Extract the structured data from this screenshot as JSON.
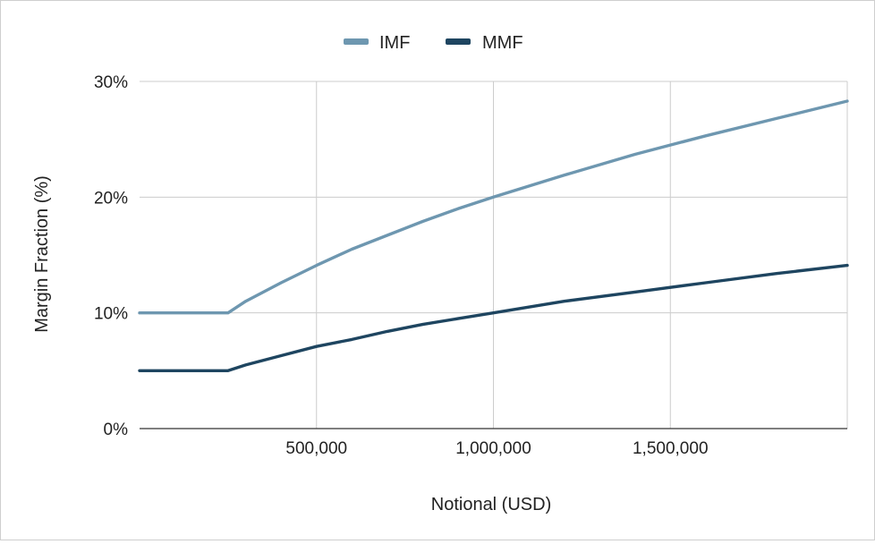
{
  "chart_data": {
    "type": "line",
    "title": "",
    "xlabel": "Notional (USD)",
    "ylabel": "Margin Fraction (%)",
    "xlim": [
      0,
      2000000
    ],
    "ylim": [
      0,
      30
    ],
    "x_ticks": [
      500000,
      1000000,
      1500000
    ],
    "x_tick_labels": [
      "500,000",
      "1,000,000",
      "1,500,000"
    ],
    "y_ticks": [
      0,
      10,
      20,
      30
    ],
    "y_tick_labels": [
      "0%",
      "10%",
      "20%",
      "30%"
    ],
    "grid": true,
    "legend_position": "top",
    "series": [
      {
        "name": "IMF",
        "color": "#6e97b0",
        "x": [
          0,
          250000,
          300000,
          400000,
          500000,
          600000,
          700000,
          800000,
          900000,
          1000000,
          1200000,
          1400000,
          1600000,
          1800000,
          2000000
        ],
        "values": [
          10,
          10,
          11,
          12.6,
          14.1,
          15.5,
          16.7,
          17.9,
          19.0,
          20.0,
          21.9,
          23.7,
          25.3,
          26.8,
          28.3
        ]
      },
      {
        "name": "MMF",
        "color": "#1e4560",
        "x": [
          0,
          250000,
          300000,
          400000,
          500000,
          600000,
          700000,
          800000,
          900000,
          1000000,
          1200000,
          1400000,
          1600000,
          1800000,
          2000000
        ],
        "values": [
          5,
          5,
          5.5,
          6.3,
          7.1,
          7.7,
          8.4,
          9.0,
          9.5,
          10.0,
          11.0,
          11.8,
          12.6,
          13.4,
          14.1
        ]
      }
    ]
  }
}
